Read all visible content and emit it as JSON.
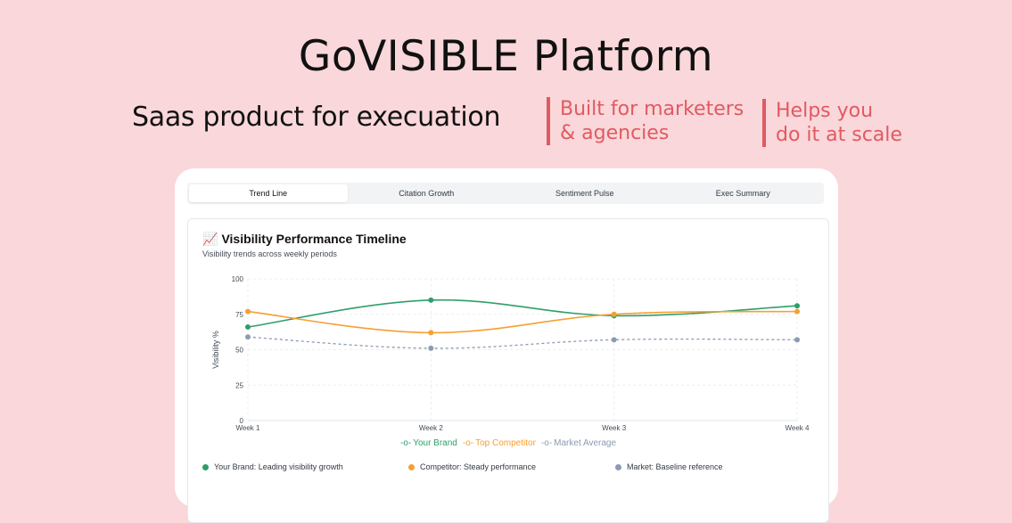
{
  "hero": {
    "title": "GoVISIBLE Platform",
    "tagline": "Saas product for execuation",
    "callouts": [
      {
        "line1": "Built for marketers",
        "line2": "& agencies"
      },
      {
        "line1": "Helps you",
        "line2": "do it at scale"
      }
    ],
    "accent_color": "#e05a62",
    "background_color": "#f9d7da"
  },
  "tabs": [
    {
      "label": "Trend Line",
      "active": true
    },
    {
      "label": "Citation Growth",
      "active": false
    },
    {
      "label": "Sentiment Pulse",
      "active": false
    },
    {
      "label": "Exec Summary",
      "active": false
    }
  ],
  "card": {
    "title_emoji": "📈",
    "title": "Visibility Performance Timeline",
    "subtitle": "Visibility trends across weekly periods"
  },
  "chart_data": {
    "type": "line",
    "title": "Visibility Performance Timeline",
    "subtitle": "Visibility trends across weekly periods",
    "ylabel": "Visibility %",
    "xlabel": "",
    "categories": [
      "Week 1",
      "Week 2",
      "Week 3",
      "Week 4"
    ],
    "ylim": [
      0,
      100
    ],
    "yticks": [
      0,
      25,
      50,
      75,
      100
    ],
    "grid": true,
    "legend_position": "bottom",
    "series": [
      {
        "name": "Your Brand",
        "values": [
          66,
          85,
          74,
          81
        ],
        "color": "#2e9e6b",
        "dashed": false
      },
      {
        "name": "Top Competitor",
        "values": [
          77,
          62,
          75,
          77
        ],
        "color": "#f5a031",
        "dashed": false
      },
      {
        "name": "Market Average",
        "values": [
          59,
          51,
          57,
          57
        ],
        "color": "#8a9bb3",
        "dashed": true
      }
    ]
  },
  "legend_symbol": "-o-",
  "notes": [
    {
      "text": "Your Brand: Leading visibility growth",
      "color": "#2e9e6b"
    },
    {
      "text": "Competitor: Steady performance",
      "color": "#f5a031"
    },
    {
      "text": "Market: Baseline reference",
      "color": "#8a9bb3"
    }
  ]
}
